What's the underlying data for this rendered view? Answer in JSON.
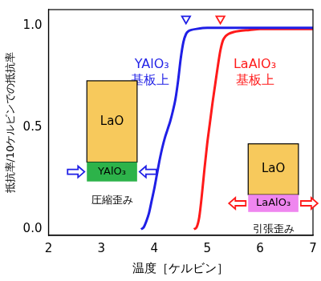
{
  "chart_data": {
    "type": "line",
    "x_label": "温度［ケルビン］",
    "y_label": "抵抗率/10ケルビンでの抵抗率",
    "xlim": [
      2,
      7
    ],
    "xticks": [
      2,
      3,
      4,
      5,
      6,
      7
    ],
    "ylim": [
      -0.03,
      1.08
    ],
    "yticks": [
      {
        "value": 0,
        "label": "0.0"
      },
      {
        "value": 0.5,
        "label": "0.5"
      },
      {
        "value": 1,
        "label": "1.0"
      }
    ],
    "grid": false,
    "legend": "none",
    "series": [
      {
        "name": "YAlO₃ 基板上",
        "color": "#1f1fe6",
        "type": "line",
        "x": [
          3.75,
          3.8,
          3.85,
          3.9,
          3.95,
          4.0,
          4.05,
          4.1,
          4.15,
          4.2,
          4.25,
          4.3,
          4.35,
          4.4,
          4.45,
          4.5,
          4.55,
          4.6,
          4.65,
          4.7,
          4.8,
          5.0,
          5.5,
          6.0,
          6.5,
          7.0
        ],
        "values": [
          0,
          0.01,
          0.04,
          0.08,
          0.14,
          0.2,
          0.27,
          0.34,
          0.4,
          0.45,
          0.49,
          0.53,
          0.58,
          0.64,
          0.73,
          0.84,
          0.92,
          0.96,
          0.975,
          0.98,
          0.985,
          0.99,
          0.99,
          0.99,
          0.99,
          0.99
        ]
      },
      {
        "name": "LaAlO₃ 基板上",
        "color": "#ff1a1a",
        "type": "line",
        "x": [
          4.75,
          4.8,
          4.85,
          4.9,
          4.95,
          5.0,
          5.05,
          5.1,
          5.15,
          5.2,
          5.25,
          5.3,
          5.35,
          5.4,
          5.5,
          5.6,
          5.8,
          6.0,
          6.5,
          7.0
        ],
        "values": [
          0,
          0.01,
          0.06,
          0.17,
          0.3,
          0.42,
          0.52,
          0.62,
          0.71,
          0.8,
          0.88,
          0.93,
          0.95,
          0.96,
          0.97,
          0.975,
          0.98,
          0.985,
          0.985,
          0.985
        ]
      },
      {
        "color": "#1f1fe6",
        "type": "scatter",
        "marker": "triangle_down",
        "x": [
          4.6
        ],
        "values": [
          1.035
        ]
      },
      {
        "color": "#ff1a1a",
        "type": "scatter",
        "marker": "triangle_down",
        "x": [
          5.25
        ],
        "values": [
          1.035
        ]
      }
    ],
    "annotations": [
      {
        "lines": [
          "YAlO₃",
          "基板上"
        ],
        "color": "#1f1fe6"
      },
      {
        "lines": [
          "LaAlO₃",
          "基板上"
        ],
        "color": "#ff1a1a"
      }
    ],
    "insets": [
      {
        "top": "LaO",
        "bottom": "YAlO₃",
        "caption": "圧縮歪み",
        "top_color": "#f7c95c",
        "bottom_color": "#2db34a",
        "arrow_color": "#1f1fe6"
      },
      {
        "top": "LaO",
        "bottom": "LaAlO₃",
        "caption": "引張歪み",
        "top_color": "#f7c95c",
        "bottom_color": "#ef86ef",
        "arrow_color": "#ff1a1a"
      }
    ]
  }
}
